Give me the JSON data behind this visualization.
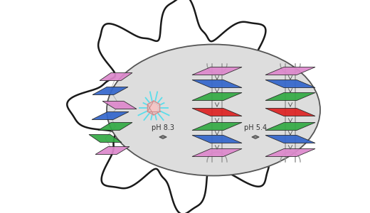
{
  "cell_color": "#ffffff",
  "cell_edge_color": "#1a1a1a",
  "nucleus_color": "#dddddd",
  "nucleus_edge_color": "#555555",
  "ph83_label": "pH 8.3",
  "ph54_label": "pH 5.4",
  "colors": {
    "blue": "#3366cc",
    "green": "#33aa44",
    "red": "#dd2222",
    "pink": "#dd88cc",
    "magenta": "#bb44aa",
    "cyan_burst": "#44ddee",
    "hex_fill": "#ffbbbb",
    "backbone": "#999999"
  },
  "fig_width": 5.2,
  "fig_height": 3.0,
  "dpi": 100
}
